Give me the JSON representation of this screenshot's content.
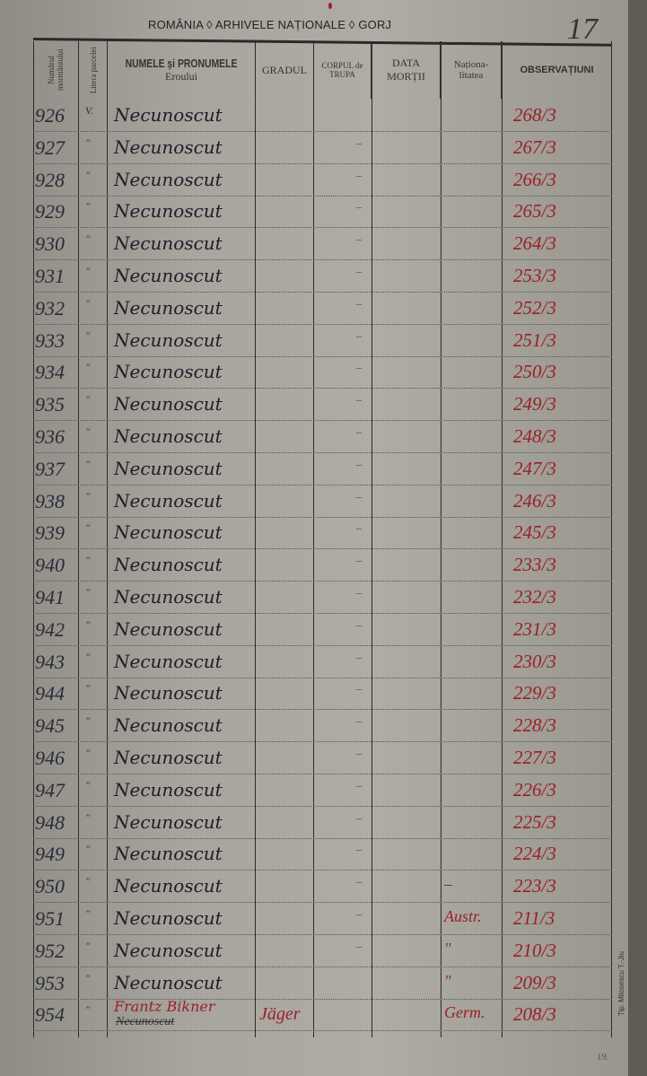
{
  "archive_stamp": "ROMÂNIA ◊ ARHIVELE NAȚIONALE ◊ GORJ",
  "page_number": "17",
  "columns": {
    "number": "Numărul mormântului",
    "letter": "Litera parcelei",
    "name": "NUMELE şi PRONUMELE",
    "name_sub": "Eroului",
    "rank": "GRADUL",
    "corps": "CORPUL de TRUPA",
    "death_date": "DATA MORȚII",
    "nationality": "Naționa-litatea",
    "observations": "OBSERVAȚIUNI"
  },
  "rows": [
    {
      "number": "926",
      "letter": "V.",
      "name": "Necunoscut",
      "corps": "",
      "nationality": "",
      "obs": "268/3"
    },
    {
      "number": "927",
      "letter": "\"",
      "name": "Necunoscut",
      "corps": "–",
      "nationality": "",
      "obs": "267/3"
    },
    {
      "number": "928",
      "letter": "\"",
      "name": "Necunoscut",
      "corps": "–",
      "nationality": "",
      "obs": "266/3"
    },
    {
      "number": "929",
      "letter": "\"",
      "name": "Necunoscut",
      "corps": "–",
      "nationality": "",
      "obs": "265/3"
    },
    {
      "number": "930",
      "letter": "\"",
      "name": "Necunoscut",
      "corps": "–",
      "nationality": "",
      "obs": "264/3"
    },
    {
      "number": "931",
      "letter": "\"",
      "name": "Necunoscut",
      "corps": "–",
      "nationality": "",
      "obs": "253/3"
    },
    {
      "number": "932",
      "letter": "\"",
      "name": "Necunoscut",
      "corps": "–",
      "nationality": "",
      "obs": "252/3"
    },
    {
      "number": "933",
      "letter": "\"",
      "name": "Necunoscut",
      "corps": "–",
      "nationality": "",
      "obs": "251/3"
    },
    {
      "number": "934",
      "letter": "\"",
      "name": "Necunoscut",
      "corps": "–",
      "nationality": "",
      "obs": "250/3"
    },
    {
      "number": "935",
      "letter": "\"",
      "name": "Necunoscut",
      "corps": "–",
      "nationality": "",
      "obs": "249/3"
    },
    {
      "number": "936",
      "letter": "\"",
      "name": "Necunoscut",
      "corps": "–",
      "nationality": "",
      "obs": "248/3"
    },
    {
      "number": "937",
      "letter": "\"",
      "name": "Necunoscut",
      "corps": "–",
      "nationality": "",
      "obs": "247/3"
    },
    {
      "number": "938",
      "letter": "\"",
      "name": "Necunoscut",
      "corps": "–",
      "nationality": "",
      "obs": "246/3"
    },
    {
      "number": "939",
      "letter": "\"",
      "name": "Necunoscut",
      "corps": "–",
      "nationality": "",
      "obs": "245/3"
    },
    {
      "number": "940",
      "letter": "\"",
      "name": "Necunoscut",
      "corps": "–",
      "nationality": "",
      "obs": "233/3"
    },
    {
      "number": "941",
      "letter": "\"",
      "name": "Necunoscut",
      "corps": "–",
      "nationality": "",
      "obs": "232/3"
    },
    {
      "number": "942",
      "letter": "\"",
      "name": "Necunoscut",
      "corps": "–",
      "nationality": "",
      "obs": "231/3"
    },
    {
      "number": "943",
      "letter": "\"",
      "name": "Necunoscut",
      "corps": "–",
      "nationality": "",
      "obs": "230/3"
    },
    {
      "number": "944",
      "letter": "\"",
      "name": "Necunoscut",
      "corps": "–",
      "nationality": "",
      "obs": "229/3"
    },
    {
      "number": "945",
      "letter": "\"",
      "name": "Necunoscut",
      "corps": "–",
      "nationality": "",
      "obs": "228/3"
    },
    {
      "number": "946",
      "letter": "\"",
      "name": "Necunoscut",
      "corps": "–",
      "nationality": "",
      "obs": "227/3"
    },
    {
      "number": "947",
      "letter": "\"",
      "name": "Necunoscut",
      "corps": "–",
      "nationality": "",
      "obs": "226/3"
    },
    {
      "number": "948",
      "letter": "\"",
      "name": "Necunoscut",
      "corps": "–",
      "nationality": "",
      "obs": "225/3"
    },
    {
      "number": "949",
      "letter": "\"",
      "name": "Necunoscut",
      "corps": "–",
      "nationality": "",
      "obs": "224/3"
    },
    {
      "number": "950",
      "letter": "\"",
      "name": "Necunoscut",
      "corps": "–",
      "nationality": "–",
      "obs": "223/3"
    },
    {
      "number": "951",
      "letter": "\"",
      "name": "Necunoscut",
      "corps": "–",
      "nationality": "Austr.",
      "obs": "211/3"
    },
    {
      "number": "952",
      "letter": "\"",
      "name": "Necunoscut",
      "corps": "–",
      "nationality": "\"",
      "obs": "210/3"
    },
    {
      "number": "953",
      "letter": "\"",
      "name": "Necunoscut",
      "corps": "",
      "nationality": "\"",
      "obs": "209/3"
    },
    {
      "number": "954",
      "letter": "\"",
      "name": "Frantz Bikner",
      "name_struck": "Necunoscut",
      "rank": "Jäger",
      "corps": "",
      "nationality": "Germ.",
      "obs": "208/3"
    }
  ],
  "printer_mark": "Tip. Milosescu T.-Jiu",
  "bottom_note": "19.",
  "colors": {
    "ink_red": "#9a1f2a",
    "ink_black": "#1e1e2a",
    "paper": "#aeaca4"
  }
}
